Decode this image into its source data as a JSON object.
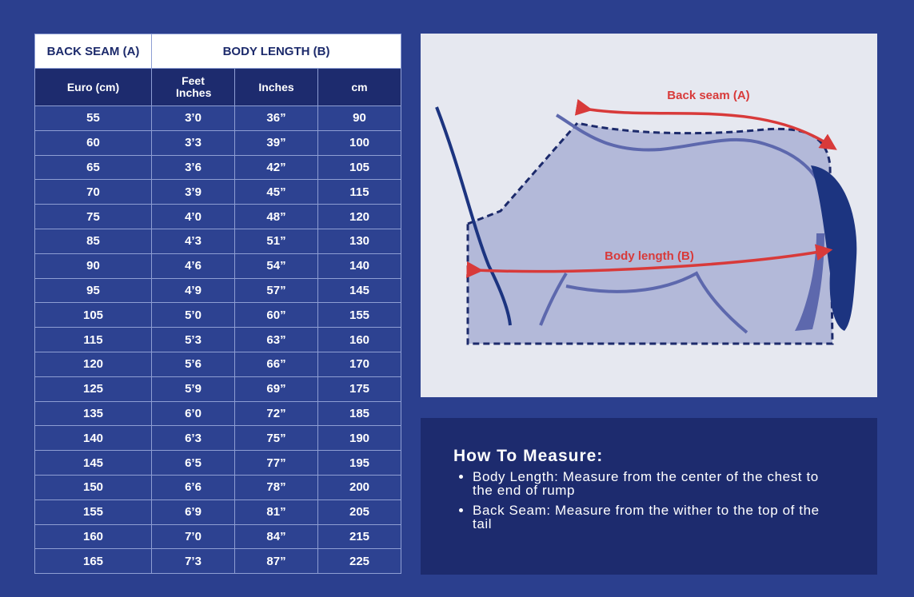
{
  "table": {
    "group_headers": [
      "BACK SEAM (A)",
      "BODY LENGTH (B)"
    ],
    "headers": [
      "Euro (cm)",
      "Feet Inches",
      "Inches",
      "cm"
    ],
    "rows": [
      [
        "55",
        "3’0",
        "36”",
        "90"
      ],
      [
        "60",
        "3’3",
        "39”",
        "100"
      ],
      [
        "65",
        "3’6",
        "42”",
        "105"
      ],
      [
        "70",
        "3’9",
        "45”",
        "115"
      ],
      [
        "75",
        "4’0",
        "48”",
        "120"
      ],
      [
        "85",
        "4’3",
        "51”",
        "130"
      ],
      [
        "90",
        "4’6",
        "54”",
        "140"
      ],
      [
        "95",
        "4’9",
        "57”",
        "145"
      ],
      [
        "105",
        "5’0",
        "60”",
        "155"
      ],
      [
        "115",
        "5’3",
        "63”",
        "160"
      ],
      [
        "120",
        "5’6",
        "66”",
        "170"
      ],
      [
        "125",
        "5’9",
        "69”",
        "175"
      ],
      [
        "135",
        "6’0",
        "72”",
        "185"
      ],
      [
        "140",
        "6’3",
        "75”",
        "190"
      ],
      [
        "145",
        "6’5",
        "77”",
        "195"
      ],
      [
        "150",
        "6’6",
        "78”",
        "200"
      ],
      [
        "155",
        "6’9",
        "81”",
        "205"
      ],
      [
        "160",
        "7’0",
        "84”",
        "215"
      ],
      [
        "165",
        "7’3",
        "87”",
        "225"
      ]
    ]
  },
  "diagram": {
    "back_seam_label": "Back seam (A)",
    "body_length_label": "Body length (B)"
  },
  "instructions": {
    "title": "How To Measure:",
    "items": [
      "Body Length: Measure from the center of the chest to the end of rump",
      "Back Seam: Measure from the wither to the top of the tail"
    ]
  }
}
